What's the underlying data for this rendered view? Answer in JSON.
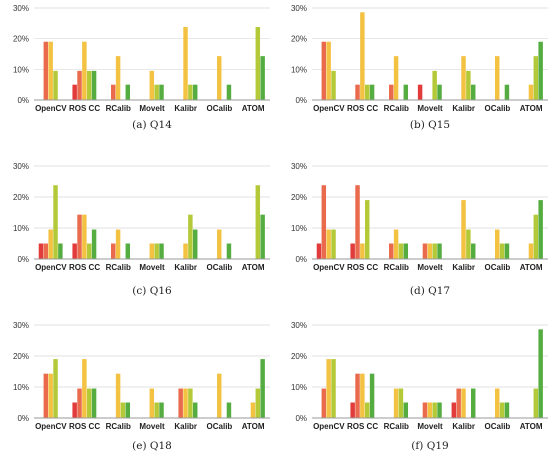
{
  "palette": [
    "#e23b3b",
    "#ea6a4e",
    "#f3c242",
    "#b4c938",
    "#55ad41"
  ],
  "chart_data": [
    {
      "type": "bar",
      "caption": "(a)  Q14",
      "categories": [
        "OpenCV",
        "ROS CC",
        "RCalib",
        "MoveIt",
        "Kalibr",
        "OCalib",
        "ATOM"
      ],
      "yticks": [
        "0%",
        "10%",
        "20%",
        "30%"
      ],
      "ylim": [
        0,
        30
      ],
      "values": [
        [
          0,
          19,
          19,
          9.5,
          0
        ],
        [
          5,
          9.5,
          19,
          9.5,
          9.5
        ],
        [
          0,
          5,
          14.3,
          0,
          5
        ],
        [
          0,
          0,
          9.5,
          5,
          5
        ],
        [
          0,
          0,
          23.8,
          5,
          5
        ],
        [
          0,
          0,
          14.3,
          0,
          5
        ],
        [
          0,
          0,
          0,
          23.8,
          14.3
        ]
      ]
    },
    {
      "type": "bar",
      "caption": "(b)  Q15",
      "categories": [
        "OpenCV",
        "ROS CC",
        "RCalib",
        "MoveIt",
        "Kalibr",
        "OCalib",
        "ATOM"
      ],
      "yticks": [
        "0%",
        "10%",
        "20%",
        "30%"
      ],
      "ylim": [
        0,
        30
      ],
      "values": [
        [
          0,
          19,
          19,
          9.5,
          0
        ],
        [
          0,
          5,
          28.6,
          5,
          5
        ],
        [
          0,
          5,
          14.3,
          0,
          5
        ],
        [
          5,
          0,
          0,
          9.5,
          5
        ],
        [
          0,
          0,
          14.3,
          9.5,
          5
        ],
        [
          0,
          0,
          14.3,
          0,
          5
        ],
        [
          0,
          0,
          5,
          14.3,
          19
        ]
      ]
    },
    {
      "type": "bar",
      "caption": "(c)  Q16",
      "categories": [
        "OpenCV",
        "ROS CC",
        "RCalib",
        "MoveIt",
        "Kalibr",
        "OCalib",
        "ATOM"
      ],
      "yticks": [
        "0%",
        "10%",
        "20%",
        "30%"
      ],
      "ylim": [
        0,
        30
      ],
      "values": [
        [
          5,
          5,
          9.5,
          23.8,
          5
        ],
        [
          5,
          14.3,
          14.3,
          5,
          9.5
        ],
        [
          0,
          5,
          9.5,
          0,
          5
        ],
        [
          0,
          0,
          5,
          5,
          5
        ],
        [
          0,
          0,
          5,
          14.3,
          9.5
        ],
        [
          0,
          0,
          9.5,
          0,
          5
        ],
        [
          0,
          0,
          0,
          23.8,
          14.3
        ]
      ]
    },
    {
      "type": "bar",
      "caption": "(d)  Q17",
      "categories": [
        "OpenCV",
        "ROS CC",
        "RCalib",
        "MoveIt",
        "Kalibr",
        "OCalib",
        "ATOM"
      ],
      "yticks": [
        "0%",
        "10%",
        "20%",
        "30%"
      ],
      "ylim": [
        0,
        30
      ],
      "values": [
        [
          5,
          23.8,
          9.5,
          9.5,
          0
        ],
        [
          5,
          23.8,
          5,
          19,
          0
        ],
        [
          0,
          5,
          9.5,
          5,
          5
        ],
        [
          0,
          5,
          5,
          5,
          5
        ],
        [
          0,
          0,
          19,
          9.5,
          5
        ],
        [
          0,
          0,
          9.5,
          5,
          5
        ],
        [
          0,
          0,
          5,
          14.3,
          19
        ]
      ]
    },
    {
      "type": "bar",
      "caption": "(e)  Q18",
      "categories": [
        "OpenCV",
        "ROS CC",
        "RCalib",
        "MoveIt",
        "Kalibr",
        "OCalib",
        "ATOM"
      ],
      "yticks": [
        "0%",
        "10%",
        "20%",
        "30%"
      ],
      "ylim": [
        0,
        30
      ],
      "values": [
        [
          0,
          14.3,
          14.3,
          19,
          0
        ],
        [
          5,
          9.5,
          19,
          9.5,
          9.5
        ],
        [
          0,
          0,
          14.3,
          5,
          5
        ],
        [
          0,
          0,
          9.5,
          5,
          5
        ],
        [
          0,
          9.5,
          9.5,
          9.5,
          5
        ],
        [
          0,
          0,
          14.3,
          0,
          5
        ],
        [
          0,
          0,
          5,
          9.5,
          19
        ]
      ]
    },
    {
      "type": "bar",
      "caption": "(f)  Q19",
      "categories": [
        "OpenCV",
        "ROS CC",
        "RCalib",
        "MoveIt",
        "Kalibr",
        "OCalib",
        "ATOM"
      ],
      "yticks": [
        "0%",
        "10%",
        "20%",
        "30%"
      ],
      "ylim": [
        0,
        30
      ],
      "values": [
        [
          0,
          9.5,
          19,
          19,
          0
        ],
        [
          5,
          14.3,
          14.3,
          5,
          14.3
        ],
        [
          0,
          0,
          9.5,
          9.5,
          5
        ],
        [
          0,
          5,
          5,
          5,
          5
        ],
        [
          5,
          9.5,
          9.5,
          0,
          9.5
        ],
        [
          0,
          0,
          9.5,
          5,
          5
        ],
        [
          0,
          0,
          0,
          9.5,
          28.6
        ]
      ]
    }
  ]
}
